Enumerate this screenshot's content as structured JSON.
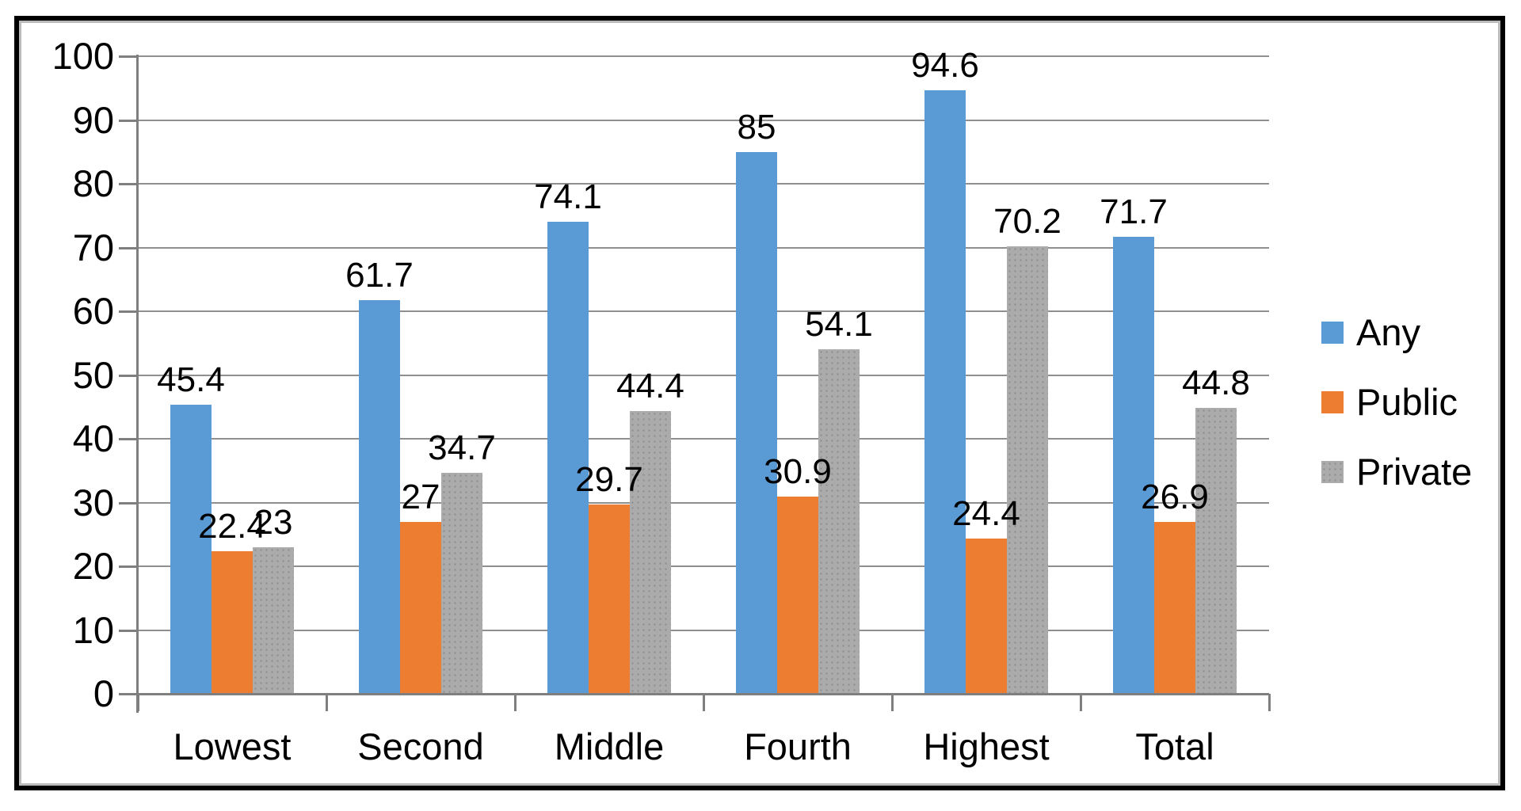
{
  "chart_data": {
    "type": "bar",
    "title": "",
    "categories": [
      "Lowest",
      "Second",
      "Middle",
      "Fourth",
      "Highest",
      "Total"
    ],
    "series": [
      {
        "name": "Any",
        "color": "#5B9BD5",
        "values": [
          45.4,
          61.7,
          74.1,
          85,
          94.6,
          71.7
        ]
      },
      {
        "name": "Public",
        "color": "#ED7D31",
        "values": [
          22.4,
          27,
          29.7,
          30.9,
          24.4,
          26.9
        ]
      },
      {
        "name": "Private",
        "color": "#ABABAB",
        "pattern": "dotted",
        "values": [
          23,
          34.7,
          44.4,
          54.1,
          70.2,
          44.8
        ]
      }
    ],
    "ylim": [
      0,
      100
    ],
    "y_ticks": [
      0,
      10,
      20,
      30,
      40,
      50,
      60,
      70,
      80,
      90,
      100
    ],
    "grid": true,
    "value_labels": true,
    "legend_position": "right",
    "xlabel": "",
    "ylabel": ""
  },
  "palette": {
    "background": "#FFFFFF",
    "frame_border": "#000000",
    "frame_inner_shadow": "#BBBBBB",
    "gridline": "#8F8F8F",
    "axis_line": "#7F7F7F",
    "label_text": "#000000"
  }
}
